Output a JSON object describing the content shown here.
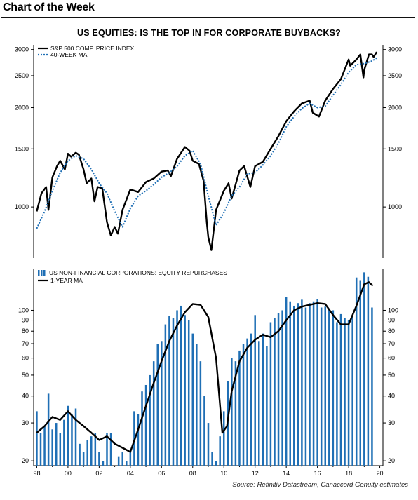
{
  "header": {
    "title": "Chart of the Week"
  },
  "chart_title": "US EQUITIES: IS THE TOP IN FOR CORPORATE BUYBACKS?",
  "source": "Source: Refinitiv Datastream, Canaccord Genuity estimates",
  "colors": {
    "line": "#000000",
    "ma_dotted": "#1f6fb5",
    "bars": "#1f6fb5"
  },
  "chart_data": [
    {
      "type": "line",
      "title": "",
      "scale": "log",
      "ylim": [
        700,
        3100
      ],
      "xlim": [
        1997.8,
        2020.2
      ],
      "y_ticks": [
        1000,
        1500,
        2000,
        2500,
        3000
      ],
      "legend_placement": "top-left",
      "series": [
        {
          "name": "S&P 500 COMP. PRICE INDEX",
          "style": "solid",
          "x": [
            1998.0,
            1998.3,
            1998.6,
            1998.75,
            1999.0,
            1999.3,
            1999.5,
            1999.8,
            2000.0,
            2000.2,
            2000.5,
            2000.7,
            2001.0,
            2001.2,
            2001.5,
            2001.7,
            2001.9,
            2002.2,
            2002.5,
            2002.75,
            2003.0,
            2003.2,
            2003.5,
            2004.0,
            2004.5,
            2005.0,
            2005.5,
            2006.0,
            2006.4,
            2006.6,
            2007.0,
            2007.5,
            2007.8,
            2008.0,
            2008.4,
            2008.7,
            2008.9,
            2009.0,
            2009.2,
            2009.5,
            2010.0,
            2010.3,
            2010.5,
            2011.0,
            2011.3,
            2011.7,
            2012.0,
            2012.5,
            2013.0,
            2013.5,
            2014.0,
            2014.5,
            2015.0,
            2015.5,
            2015.7,
            2016.1,
            2016.5,
            2017.0,
            2017.5,
            2018.0,
            2018.1,
            2018.5,
            2018.75,
            2018.95,
            2019.0,
            2019.3,
            2019.5,
            2019.6,
            2019.8
          ],
          "y": [
            970,
            1100,
            1150,
            980,
            1230,
            1330,
            1380,
            1300,
            1450,
            1420,
            1460,
            1440,
            1300,
            1180,
            1220,
            1040,
            1150,
            1140,
            900,
            820,
            870,
            830,
            980,
            1130,
            1110,
            1190,
            1220,
            1280,
            1290,
            1240,
            1400,
            1520,
            1480,
            1380,
            1350,
            1200,
            900,
            810,
            740,
            980,
            1120,
            1180,
            1060,
            1290,
            1330,
            1150,
            1330,
            1370,
            1500,
            1640,
            1820,
            1950,
            2060,
            2100,
            1930,
            1880,
            2100,
            2280,
            2440,
            2800,
            2680,
            2800,
            2900,
            2470,
            2600,
            2900,
            2900,
            2850,
            2950
          ]
        },
        {
          "name": "40-WEEK MA",
          "style": "dotted",
          "x": [
            1998.0,
            1998.5,
            1999.0,
            1999.5,
            2000.0,
            2000.5,
            2001.0,
            2001.5,
            2002.0,
            2002.5,
            2003.0,
            2003.5,
            2004.0,
            2004.5,
            2005.0,
            2005.5,
            2006.0,
            2006.5,
            2007.0,
            2007.5,
            2008.0,
            2008.5,
            2009.0,
            2009.5,
            2010.0,
            2010.5,
            2011.0,
            2011.5,
            2012.0,
            2012.5,
            2013.0,
            2013.5,
            2014.0,
            2014.5,
            2015.0,
            2015.5,
            2016.0,
            2016.5,
            2017.0,
            2017.5,
            2018.0,
            2018.5,
            2019.0,
            2019.5,
            2019.8
          ],
          "y": [
            860,
            970,
            1120,
            1270,
            1380,
            1430,
            1400,
            1300,
            1180,
            1100,
            970,
            870,
            990,
            1080,
            1120,
            1170,
            1230,
            1270,
            1330,
            1430,
            1480,
            1350,
            1080,
            880,
            960,
            1080,
            1150,
            1260,
            1270,
            1340,
            1430,
            1560,
            1750,
            1880,
            1990,
            2060,
            2000,
            2020,
            2180,
            2350,
            2560,
            2700,
            2720,
            2770,
            2830
          ]
        }
      ]
    },
    {
      "type": "bar",
      "title": "",
      "scale": "log",
      "ylim": [
        19,
        155
      ],
      "xlim": [
        1997.8,
        2020.2
      ],
      "y_ticks": [
        20,
        30,
        40,
        50,
        60,
        70,
        80,
        90,
        100
      ],
      "x_tick_labels": [
        "98",
        "00",
        "02",
        "04",
        "06",
        "08",
        "10",
        "12",
        "14",
        "16",
        "18",
        "20"
      ],
      "x_tick_values": [
        1998,
        2000,
        2002,
        2004,
        2006,
        2008,
        2010,
        2012,
        2014,
        2016,
        2018,
        2020
      ],
      "legend_placement": "top-left",
      "series": [
        {
          "name": "US  NON-FINANCIAL CORPORATIONS: EQUITY REPURCHASES",
          "style": "bars",
          "x": [
            1998.0,
            1998.25,
            1998.5,
            1998.75,
            1999.0,
            1999.25,
            1999.5,
            1999.75,
            2000.0,
            2000.25,
            2000.5,
            2000.75,
            2001.0,
            2001.25,
            2001.5,
            2001.75,
            2002.0,
            2002.25,
            2002.5,
            2002.75,
            2003.0,
            2003.25,
            2003.5,
            2003.75,
            2004.0,
            2004.25,
            2004.5,
            2004.75,
            2005.0,
            2005.25,
            2005.5,
            2005.75,
            2006.0,
            2006.25,
            2006.5,
            2006.75,
            2007.0,
            2007.25,
            2007.5,
            2007.75,
            2008.0,
            2008.25,
            2008.5,
            2008.75,
            2009.0,
            2009.25,
            2009.5,
            2009.75,
            2010.0,
            2010.25,
            2010.5,
            2010.75,
            2011.0,
            2011.25,
            2011.5,
            2011.75,
            2012.0,
            2012.25,
            2012.5,
            2012.75,
            2013.0,
            2013.25,
            2013.5,
            2013.75,
            2014.0,
            2014.25,
            2014.5,
            2014.75,
            2015.0,
            2015.25,
            2015.5,
            2015.75,
            2016.0,
            2016.25,
            2016.5,
            2016.75,
            2017.0,
            2017.25,
            2017.5,
            2017.75,
            2018.0,
            2018.25,
            2018.5,
            2018.75,
            2019.0,
            2019.25,
            2019.5
          ],
          "y": [
            34,
            27,
            29,
            41,
            28,
            30,
            27,
            31,
            36,
            33,
            35,
            24,
            22,
            25,
            26,
            27,
            22,
            20,
            27,
            27,
            19,
            21,
            22,
            20,
            22,
            34,
            33,
            42,
            45,
            50,
            58,
            70,
            72,
            86,
            94,
            92,
            100,
            105,
            95,
            90,
            78,
            70,
            58,
            40,
            30,
            22,
            20,
            26,
            34,
            47,
            60,
            58,
            65,
            70,
            74,
            78,
            95,
            72,
            78,
            68,
            88,
            92,
            97,
            100,
            115,
            110,
            105,
            108,
            112,
            103,
            108,
            110,
            113,
            103,
            104,
            102,
            100,
            88,
            96,
            92,
            90,
            95,
            142,
            138,
            150,
            143,
            103
          ]
        },
        {
          "name": "1-YEAR MA",
          "style": "solid",
          "x": [
            1998.0,
            1998.5,
            1999.0,
            1999.5,
            2000.0,
            2000.5,
            2001.0,
            2001.5,
            2002.0,
            2002.5,
            2003.0,
            2003.5,
            2004.0,
            2004.5,
            2005.0,
            2005.5,
            2006.0,
            2006.5,
            2007.0,
            2007.5,
            2008.0,
            2008.5,
            2009.0,
            2009.5,
            2009.9,
            2010.2,
            2010.5,
            2011.0,
            2011.5,
            2012.0,
            2012.5,
            2013.0,
            2013.5,
            2014.0,
            2014.5,
            2015.0,
            2015.5,
            2016.0,
            2016.5,
            2017.0,
            2017.5,
            2018.0,
            2018.5,
            2019.0,
            2019.3,
            2019.55
          ],
          "y": [
            27,
            29,
            32,
            31,
            34,
            31,
            29,
            27,
            25,
            26,
            24,
            23,
            22,
            28,
            36,
            46,
            58,
            72,
            85,
            98,
            107,
            106,
            93,
            60,
            27,
            29,
            42,
            58,
            67,
            73,
            77,
            75,
            80,
            90,
            100,
            104,
            106,
            108,
            107,
            95,
            86,
            86,
            105,
            132,
            135,
            130
          ]
        }
      ]
    }
  ]
}
